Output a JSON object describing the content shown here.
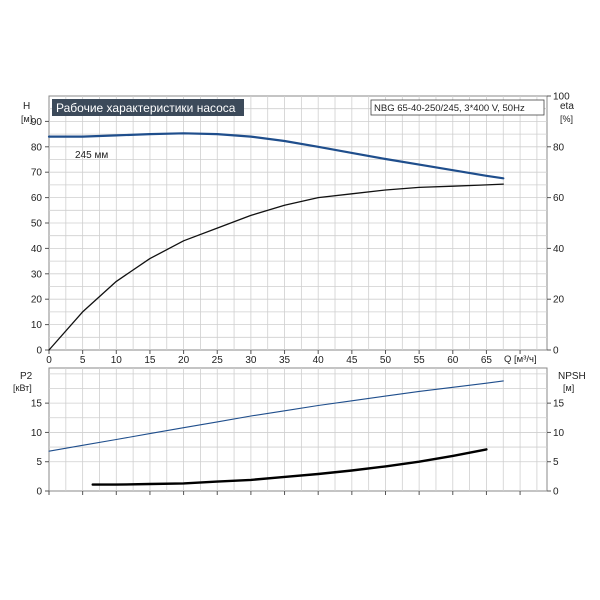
{
  "chart_data": [
    {
      "type": "line",
      "title": "Рабочие характеристики насоса",
      "model_label": "NBG 65-40-250/245, 3*400 V, 50Hz",
      "xlabel": "Q [м³/ч]",
      "ylabel_left": "H",
      "ylabel_left_unit": "[м]",
      "ylabel_right": "eta",
      "ylabel_right_unit": "[%]",
      "xlim": [
        0,
        74
      ],
      "ylim_left": [
        0,
        100
      ],
      "ylim_right": [
        0,
        100
      ],
      "x_ticks": [
        "0",
        "5",
        "10",
        "15",
        "20",
        "25",
        "30",
        "35",
        "40",
        "45",
        "50",
        "55",
        "60",
        "65"
      ],
      "y_ticks_left": [
        "0",
        "10",
        "20",
        "30",
        "40",
        "50",
        "60",
        "70",
        "80",
        "90"
      ],
      "y_ticks_right": [
        "0",
        "20",
        "40",
        "60",
        "80",
        "100"
      ],
      "grid": true,
      "series": [
        {
          "name": "245 мм",
          "axis": "left",
          "color": "#1f4e8c",
          "x": [
            0,
            5,
            10,
            15,
            20,
            25,
            30,
            35,
            40,
            45,
            50,
            55,
            60,
            65,
            67.5
          ],
          "y": [
            84,
            84,
            84.5,
            85,
            85.3,
            85,
            84,
            82.3,
            80,
            77.6,
            75.2,
            73,
            70.8,
            68.6,
            67.6
          ]
        },
        {
          "axis": "right",
          "color": "#111111",
          "x": [
            0,
            5,
            10,
            15,
            20,
            25,
            30,
            35,
            40,
            45,
            50,
            55,
            60,
            65,
            67.5
          ],
          "y": [
            0,
            15,
            27,
            36,
            43,
            48,
            53,
            57,
            60,
            61.5,
            63,
            64,
            64.5,
            65,
            65.3
          ]
        }
      ]
    },
    {
      "type": "line",
      "xlim": [
        0,
        74
      ],
      "ylim_left": [
        0,
        21
      ],
      "ylim_right": [
        0,
        21
      ],
      "ylabel_left": "P2",
      "ylabel_left_unit": "[кВт]",
      "ylabel_right": "NPSH",
      "ylabel_right_unit": "[м]",
      "y_ticks_left": [
        "0",
        "5",
        "10",
        "15"
      ],
      "y_ticks_right": [
        "0",
        "5",
        "10",
        "15"
      ],
      "grid": true,
      "series": [
        {
          "axis": "left",
          "color": "#1f4e8c",
          "x": [
            0,
            5,
            10,
            15,
            20,
            25,
            30,
            35,
            40,
            45,
            50,
            55,
            60,
            65,
            67.5
          ],
          "y": [
            6.8,
            7.8,
            8.8,
            9.8,
            10.8,
            11.8,
            12.8,
            13.7,
            14.6,
            15.4,
            16.2,
            17,
            17.7,
            18.4,
            18.8
          ]
        },
        {
          "axis": "right",
          "color": "#000000",
          "x": [
            6.5,
            10,
            15,
            20,
            25,
            30,
            35,
            40,
            45,
            50,
            55,
            60,
            65
          ],
          "y": [
            1.1,
            1.1,
            1.2,
            1.3,
            1.6,
            1.9,
            2.4,
            2.9,
            3.5,
            4.2,
            5.0,
            6.0,
            7.1
          ]
        }
      ]
    }
  ]
}
